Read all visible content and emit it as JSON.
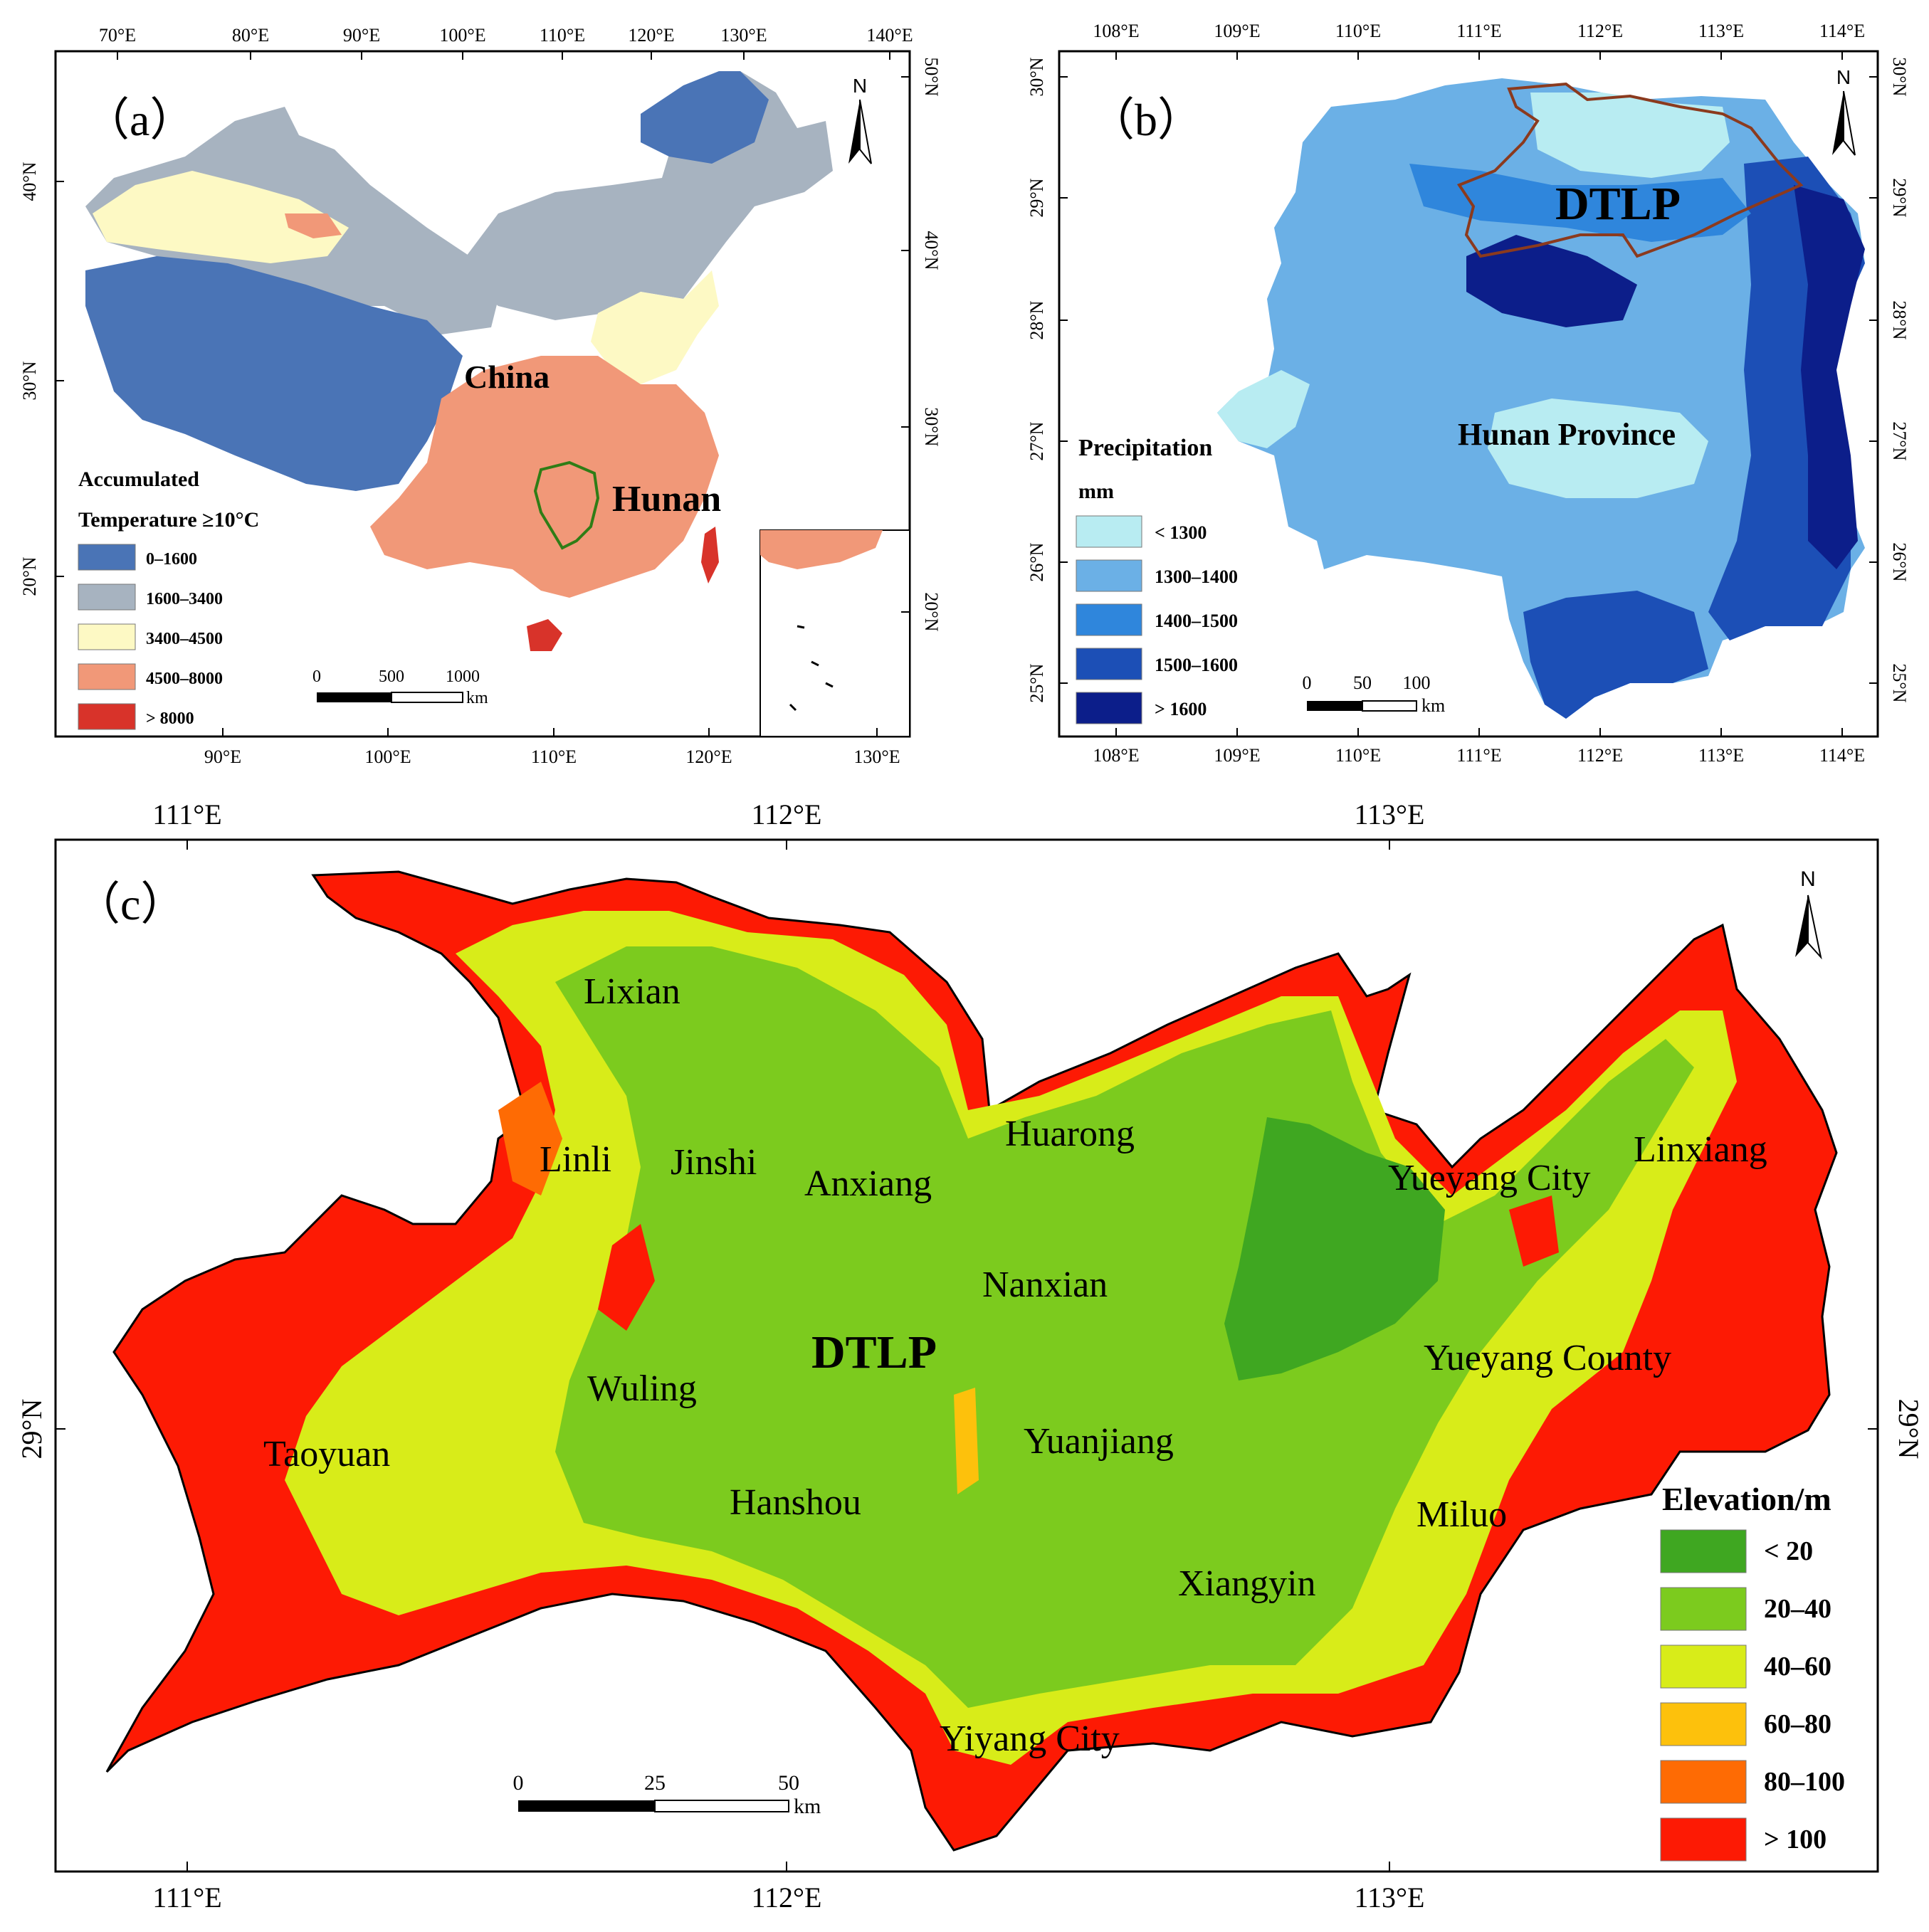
{
  "colors": {
    "temp": [
      "#4a74b6",
      "#a7b3c0",
      "#fdf9c4",
      "#f19878",
      "#d8332a"
    ],
    "precip": [
      "#b8ecf2",
      "#6bb0e6",
      "#2f86dc",
      "#1c4fb6",
      "#0c1e8a"
    ],
    "elev": [
      "#3fa721",
      "#7ccb1e",
      "#d8ec19",
      "#fdc10c",
      "#fe6b04",
      "#fd1a04"
    ],
    "hunan_outline": "#2f7d16",
    "dtlp_outline": "#8b3a1e"
  },
  "panel_a": {
    "label": "（a）",
    "top_ticks": [
      "70°E",
      "80°E",
      "90°E",
      "100°E",
      "110°E",
      "120°E",
      "130°E",
      "140°E"
    ],
    "bottom_ticks": [
      "90°E",
      "100°E",
      "110°E",
      "120°E",
      "130°E"
    ],
    "left_ticks": [
      "40°N",
      "30°N",
      "20°N"
    ],
    "right_ticks": [
      "50°N",
      "40°N",
      "30°N",
      "20°N"
    ],
    "north": "N",
    "china_label": "China",
    "hunan_label": "Hunan",
    "legend_title_1": "Accumulated",
    "legend_title_2": "Temperature ≥10°C",
    "legend": [
      "0–1600",
      "1600–3400",
      "3400–4500",
      "4500–8000",
      "> 8000"
    ],
    "scale": [
      "0",
      "500",
      "1000"
    ],
    "scale_unit": "km"
  },
  "panel_b": {
    "label": "（b）",
    "top_ticks": [
      "108°E",
      "109°E",
      "110°E",
      "111°E",
      "112°E",
      "113°E",
      "114°E"
    ],
    "bottom_ticks": [
      "108°E",
      "109°E",
      "110°E",
      "111°E",
      "112°E",
      "113°E",
      "114°E"
    ],
    "left_ticks": [
      "30°N",
      "29°N",
      "28°N",
      "27°N",
      "26°N",
      "25°N"
    ],
    "right_ticks": [
      "30°N",
      "29°N",
      "28°N",
      "27°N",
      "26°N",
      "25°N"
    ],
    "north": "N",
    "dtlp_label": "DTLP",
    "province_label": "Hunan Province",
    "legend_title_1": "Precipitation",
    "legend_title_2": "mm",
    "legend": [
      "< 1300",
      "1300–1400",
      "1400–1500",
      "1500–1600",
      "> 1600"
    ],
    "scale": [
      "0",
      "50",
      "100"
    ],
    "scale_unit": "km"
  },
  "panel_c": {
    "label": "（c）",
    "top_ticks": [
      "111°E",
      "112°E",
      "113°E"
    ],
    "bottom_ticks": [
      "111°E",
      "112°E",
      "113°E"
    ],
    "left_tick": "29°N",
    "right_tick": "29°N",
    "north": "N",
    "title": "DTLP",
    "places": [
      "Lixian",
      "Linli",
      "Jinshi",
      "Anxiang",
      "Huarong",
      "Yueyang City",
      "Linxiang",
      "Nanxian",
      "Wuling",
      "Taoyuan",
      "Hanshou",
      "Yuanjiang",
      "Yueyang County",
      "Miluo",
      "Xiangyin",
      "Yiyang City"
    ],
    "legend_title": "Elevation/m",
    "legend": [
      "< 20",
      "20–40",
      "40–60",
      "60–80",
      "80–100",
      "> 100"
    ],
    "scale": [
      "0",
      "25",
      "50"
    ],
    "scale_unit": "km"
  }
}
